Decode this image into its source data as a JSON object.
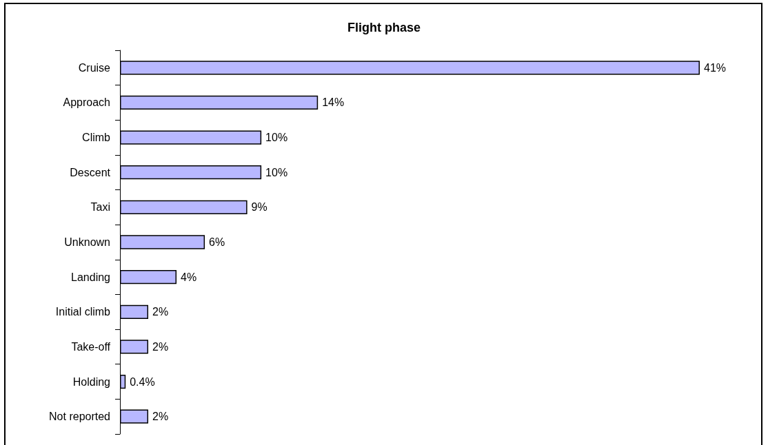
{
  "chart_data": {
    "type": "bar",
    "orientation": "horizontal",
    "title": "Flight phase",
    "categories": [
      "Cruise",
      "Approach",
      "Climb",
      "Descent",
      "Taxi",
      "Unknown",
      "Landing",
      "Initial climb",
      "Take-off",
      "Holding",
      "Not reported"
    ],
    "values": [
      41,
      14,
      10,
      10,
      9,
      6,
      4,
      2,
      2,
      0.4,
      2
    ],
    "value_labels": [
      "41%",
      "14%",
      "10%",
      "10%",
      "9%",
      "6%",
      "4%",
      "2%",
      "2%",
      "0.4%",
      "2%"
    ],
    "color": "#b8b8ff",
    "tick_labels": "y"
  }
}
